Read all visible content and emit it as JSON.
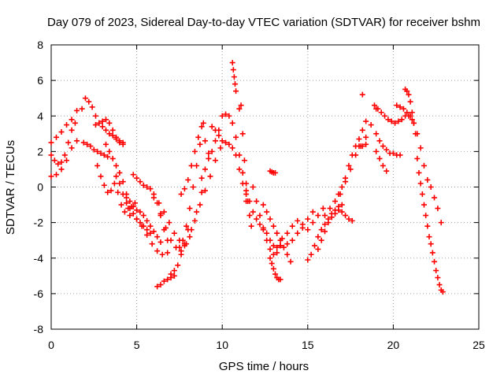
{
  "chart_data": {
    "type": "scatter",
    "title": "Day 079 of 2023, Sidereal Day-to-day VTEC variation (SDTVAR) for receiver bshm",
    "xlabel": "GPS time / hours",
    "ylabel": "SDTVAR / TECUs",
    "xlim": [
      0,
      25
    ],
    "ylim": [
      -8,
      8
    ],
    "xticks": [
      "0",
      "5",
      "10",
      "15",
      "20",
      "25"
    ],
    "yticks": [
      "-8",
      "-6",
      "-4",
      "-2",
      "0",
      "2",
      "4",
      "6",
      "8"
    ],
    "grid": true,
    "marker": "+",
    "color": "#ff0000",
    "series": [
      {
        "name": "s1",
        "x": [
          0.0,
          0.3,
          0.6,
          0.9,
          1.2,
          1.5,
          1.8
        ],
        "y": [
          2.5,
          2.8,
          3.1,
          3.5,
          3.8,
          4.3,
          4.4
        ]
      },
      {
        "name": "s2",
        "x": [
          0.0,
          0.3,
          0.6,
          0.9,
          1.2,
          1.5
        ],
        "y": [
          0.6,
          0.7,
          1.0,
          1.5,
          2.2,
          2.6
        ]
      },
      {
        "name": "s3",
        "x": [
          0.0,
          0.2,
          0.4,
          0.6,
          0.8,
          1.0,
          1.2,
          1.4
        ],
        "y": [
          1.8,
          1.5,
          1.3,
          1.4,
          1.8,
          2.5,
          3.2,
          3.6
        ]
      },
      {
        "name": "s4",
        "x": [
          1.9,
          2.1,
          2.3,
          2.5,
          2.7,
          2.9,
          3.1,
          3.3
        ],
        "y": [
          2.5,
          2.4,
          2.3,
          2.1,
          2.0,
          1.9,
          1.8,
          1.7
        ]
      },
      {
        "name": "s5",
        "x": [
          2.0,
          2.2,
          2.4,
          2.6,
          2.8,
          3.0,
          3.2,
          3.4,
          3.6,
          3.8,
          4.0,
          4.2
        ],
        "y": [
          5.0,
          4.8,
          4.5,
          4.0,
          3.6,
          3.4,
          3.2,
          3.0,
          2.9,
          2.7,
          2.6,
          2.5
        ]
      },
      {
        "name": "s6",
        "x": [
          2.6,
          2.8,
          3.0,
          3.2,
          3.4,
          3.6,
          3.8,
          4.0,
          4.2
        ],
        "y": [
          3.5,
          3.6,
          3.7,
          3.8,
          3.6,
          3.2,
          2.8,
          2.5,
          2.4
        ]
      },
      {
        "name": "s7",
        "x": [
          2.7,
          2.9,
          3.1,
          3.3,
          3.5,
          3.7,
          3.9,
          4.1,
          4.3,
          4.5,
          4.7,
          4.9
        ],
        "y": [
          1.2,
          0.6,
          0.1,
          -0.3,
          -0.2,
          0.2,
          -0.3,
          -1.0,
          -1.4,
          -1.2,
          -1.1,
          -0.9
        ]
      },
      {
        "name": "s8",
        "x": [
          3.2,
          3.4,
          3.6,
          3.8,
          4.0,
          4.2,
          4.4,
          4.6
        ],
        "y": [
          2.4,
          2.0,
          1.6,
          1.2,
          0.8,
          0.3,
          -0.6,
          -1.6
        ]
      },
      {
        "name": "s9",
        "x": [
          3.8,
          4.0,
          4.2,
          4.4,
          4.6,
          4.8,
          5.0,
          5.2,
          5.4,
          5.6,
          5.8
        ],
        "y": [
          0.6,
          0.2,
          -0.4,
          -0.9,
          -1.2,
          -1.5,
          -1.8,
          -2.0,
          -2.2,
          -2.4,
          -2.6
        ]
      },
      {
        "name": "s10",
        "x": [
          4.4,
          4.6,
          4.8,
          5.0,
          5.2,
          5.4,
          5.6,
          5.8,
          6.0,
          6.2,
          6.4
        ],
        "y": [
          -0.4,
          -0.8,
          -1.1,
          -1.3,
          -1.4,
          -1.6,
          -1.9,
          -2.2,
          -2.5,
          -2.8,
          -3.1
        ]
      },
      {
        "name": "s11",
        "x": [
          4.8,
          5.0,
          5.2,
          5.4,
          5.6,
          5.8,
          6.0,
          6.2,
          6.4,
          6.6,
          6.8
        ],
        "y": [
          0.7,
          0.5,
          0.3,
          0.1,
          0.0,
          -0.1,
          -0.4,
          -0.9,
          -1.6,
          -2.4,
          -3.0
        ]
      },
      {
        "name": "s12",
        "x": [
          5.0,
          5.3,
          5.6,
          5.9,
          6.2,
          6.5,
          6.8
        ],
        "y": [
          -1.8,
          -2.2,
          -2.7,
          -3.2,
          -3.6,
          -3.8,
          -3.7
        ]
      },
      {
        "name": "s13",
        "x": [
          6.2,
          6.4,
          6.6,
          6.8,
          7.0,
          7.2
        ],
        "y": [
          -5.6,
          -5.5,
          -5.3,
          -5.2,
          -5.1,
          -5.0
        ]
      },
      {
        "name": "s14",
        "x": [
          7.0,
          7.2,
          7.4,
          7.6,
          7.8,
          8.0
        ],
        "y": [
          -4.9,
          -4.7,
          -4.4,
          -3.8,
          -3.2,
          -2.4
        ]
      },
      {
        "name": "s15",
        "x": [
          6.0,
          6.3,
          6.6,
          6.9,
          7.2,
          7.5,
          7.8,
          8.1,
          8.4,
          8.7,
          9.0,
          9.3,
          9.6,
          9.9
        ],
        "y": [
          -0.6,
          -0.9,
          -1.4,
          -2.0,
          -2.6,
          -3.0,
          -3.3,
          -2.8,
          -1.9,
          -1.0,
          -0.2,
          0.6,
          1.5,
          2.2
        ]
      },
      {
        "name": "s16",
        "x": [
          6.4,
          6.7,
          7.0,
          7.3,
          7.6,
          7.9,
          8.2,
          8.5,
          8.8
        ],
        "y": [
          -1.5,
          -2.3,
          -3.0,
          -3.4,
          -3.6,
          -3.2,
          -2.4,
          -1.4,
          -0.3
        ]
      },
      {
        "name": "s17",
        "x": [
          7.5,
          7.7,
          7.9,
          8.1,
          8.3,
          8.5,
          8.7,
          8.9
        ],
        "y": [
          -3.4,
          -3.0,
          -2.2,
          -1.2,
          0.0,
          1.2,
          2.4,
          3.6
        ]
      },
      {
        "name": "s18",
        "x": [
          7.6,
          7.8,
          8.0,
          8.2,
          8.4,
          8.6,
          8.8,
          9.0,
          9.2
        ],
        "y": [
          -0.4,
          -0.1,
          0.4,
          1.2,
          2.0,
          2.8,
          3.4,
          2.6,
          1.9
        ]
      },
      {
        "name": "s19",
        "x": [
          8.8,
          9.0,
          9.2,
          9.4,
          9.6,
          9.8,
          10.0,
          10.2,
          10.4,
          10.6,
          10.8,
          11.0,
          11.2,
          11.4
        ],
        "y": [
          0.5,
          1.0,
          1.6,
          2.0,
          2.6,
          3.2,
          4.0,
          4.1,
          4.0,
          3.6,
          2.8,
          1.8,
          0.8,
          -0.4
        ]
      },
      {
        "name": "s20",
        "x": [
          9.4,
          9.6,
          9.8,
          10.0,
          10.2,
          10.4,
          10.6,
          10.8,
          11.0,
          11.2,
          11.4
        ],
        "y": [
          3.4,
          3.2,
          2.9,
          2.6,
          2.5,
          2.4,
          2.2,
          1.8,
          1.0,
          0.2,
          -0.8
        ]
      },
      {
        "name": "s21",
        "x": [
          10.6,
          10.65,
          10.7,
          10.75,
          10.8
        ],
        "y": [
          7.0,
          6.6,
          6.2,
          5.8,
          5.4
        ]
      },
      {
        "name": "s22",
        "x": [
          11.0,
          11.1,
          11.2,
          11.3,
          11.4,
          11.5,
          11.6,
          11.7
        ],
        "y": [
          4.4,
          4.6,
          3.0,
          1.5,
          0.2,
          -0.8,
          -1.6,
          -2.2
        ]
      },
      {
        "name": "s23",
        "x": [
          11.4,
          11.6,
          11.8,
          12.0,
          12.2,
          12.4,
          12.6,
          12.8,
          13.0,
          13.2,
          13.4
        ],
        "y": [
          -0.2,
          -0.8,
          -1.4,
          -1.8,
          -2.1,
          -2.3,
          -2.6,
          -3.0,
          -3.3,
          -3.4,
          -3.3
        ]
      },
      {
        "name": "s24",
        "x": [
          11.8,
          12.0,
          12.2,
          12.4,
          12.6,
          12.8,
          13.0,
          13.2,
          13.4
        ],
        "y": [
          0.0,
          -0.8,
          -1.6,
          -2.4,
          -3.0,
          -3.5,
          -3.8,
          -3.7,
          -3.3
        ]
      },
      {
        "name": "s25",
        "x": [
          12.4,
          12.6,
          12.8,
          13.0,
          13.2,
          13.4,
          13.6,
          13.8,
          14.0
        ],
        "y": [
          -1.0,
          -1.4,
          -1.8,
          -2.2,
          -2.6,
          -3.0,
          -3.4,
          -3.8,
          -4.2
        ]
      },
      {
        "name": "s26",
        "x": [
          12.8,
          12.9,
          13.0,
          13.1,
          13.2,
          13.3,
          13.4
        ],
        "y": [
          -4.0,
          -4.3,
          -4.6,
          -4.9,
          -5.1,
          -5.2,
          -5.2
        ]
      },
      {
        "name": "s27",
        "x": [
          12.8,
          12.9,
          13.0,
          13.1
        ],
        "y": [
          0.9,
          0.85,
          0.8,
          0.8
        ]
      },
      {
        "name": "s28",
        "x": [
          13.2,
          13.5,
          13.8,
          14.1,
          14.4,
          14.7,
          15.0,
          15.3
        ],
        "y": [
          -2.6,
          -2.9,
          -2.6,
          -2.2,
          -1.9,
          -2.1,
          -1.8,
          -1.4
        ]
      },
      {
        "name": "s29",
        "x": [
          13.8,
          14.1,
          14.4,
          14.7,
          15.0,
          15.3,
          15.6,
          15.9
        ],
        "y": [
          -3.2,
          -3.0,
          -2.6,
          -2.3,
          -2.4,
          -2.0,
          -1.6,
          -1.2
        ]
      },
      {
        "name": "s30",
        "x": [
          15.0,
          15.2,
          15.4,
          15.6,
          15.8,
          16.0,
          16.2,
          16.4,
          16.6,
          16.8,
          17.0
        ],
        "y": [
          -4.1,
          -3.8,
          -3.3,
          -2.8,
          -2.4,
          -2.1,
          -1.8,
          -1.5,
          -1.3,
          -1.1,
          -1.0
        ]
      },
      {
        "name": "s31",
        "x": [
          15.6,
          15.8,
          16.0,
          16.2,
          16.4,
          16.6,
          16.8,
          17.0,
          17.2,
          17.4,
          17.6
        ],
        "y": [
          -3.5,
          -3.0,
          -2.5,
          -2.0,
          -1.7,
          -1.5,
          -1.3,
          -1.4,
          -1.6,
          -1.8,
          -1.9
        ]
      },
      {
        "name": "s32",
        "x": [
          16.0,
          16.3,
          16.6,
          16.9,
          17.2,
          17.5,
          17.8,
          18.1,
          18.4,
          18.7,
          19.0
        ],
        "y": [
          -1.6,
          -1.2,
          -0.8,
          -0.4,
          0.3,
          1.0,
          1.8,
          2.3,
          2.8,
          3.5,
          4.4
        ]
      },
      {
        "name": "s33",
        "x": [
          16.8,
          17.0,
          17.2,
          17.4,
          17.6,
          17.8,
          18.0,
          18.2,
          18.4
        ],
        "y": [
          -0.4,
          0.0,
          0.5,
          1.2,
          1.8,
          2.3,
          2.7,
          3.2,
          3.7
        ]
      },
      {
        "name": "s34",
        "x": [
          18.0,
          18.2,
          18.4
        ],
        "y": [
          2.3,
          2.3,
          2.4
        ]
      },
      {
        "name": "s35",
        "x": [
          18.2
        ],
        "y": [
          5.2
        ]
      },
      {
        "name": "s36",
        "x": [
          18.9,
          19.1,
          19.3,
          19.5,
          19.7,
          19.9,
          20.1,
          20.3,
          20.5,
          20.7,
          20.9,
          21.1
        ],
        "y": [
          4.6,
          4.4,
          4.2,
          4.0,
          3.8,
          3.7,
          3.6,
          3.7,
          3.8,
          4.0,
          4.0,
          3.8
        ]
      },
      {
        "name": "s37",
        "x": [
          19.0,
          19.2,
          19.4,
          19.6,
          19.8,
          20.0,
          20.2,
          20.4
        ],
        "y": [
          3.0,
          2.6,
          2.3,
          2.1,
          1.9,
          1.9,
          1.8,
          1.8
        ]
      },
      {
        "name": "s38",
        "x": [
          19.0,
          19.2,
          19.4,
          19.6
        ],
        "y": [
          2.0,
          1.6,
          1.2,
          0.9
        ]
      },
      {
        "name": "s39",
        "x": [
          20.2,
          20.4,
          20.6,
          20.8,
          21.0,
          21.2,
          21.4,
          21.6,
          21.8
        ],
        "y": [
          4.6,
          4.5,
          4.4,
          4.2,
          4.0,
          3.6,
          3.0,
          2.2,
          1.2
        ]
      },
      {
        "name": "s40",
        "x": [
          20.7,
          20.8,
          20.9,
          21.0,
          21.1,
          21.2,
          21.3
        ],
        "y": [
          5.5,
          5.4,
          5.2,
          4.8,
          4.2,
          3.6,
          3.0
        ]
      },
      {
        "name": "s41",
        "x": [
          21.4,
          21.5,
          21.6,
          21.7,
          21.8,
          21.9,
          22.0,
          22.1,
          22.2
        ],
        "y": [
          1.6,
          0.8,
          0.2,
          -0.4,
          -1.0,
          -1.6,
          -2.2,
          -2.8,
          -3.2
        ]
      },
      {
        "name": "s42",
        "x": [
          22.0,
          22.2,
          22.4,
          22.6,
          22.8
        ],
        "y": [
          0.4,
          0.0,
          -0.6,
          -1.2,
          -2.0
        ]
      },
      {
        "name": "s43",
        "x": [
          22.3,
          22.4,
          22.5,
          22.6,
          22.7,
          22.8,
          22.9
        ],
        "y": [
          -3.7,
          -4.2,
          -4.7,
          -5.1,
          -5.5,
          -5.8,
          -5.9
        ]
      }
    ]
  }
}
